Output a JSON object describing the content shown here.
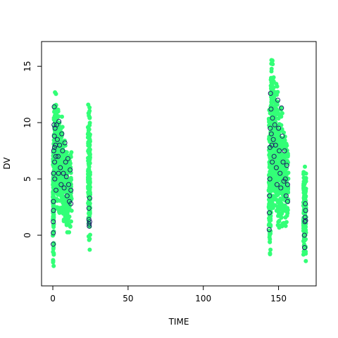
{
  "chart_data": {
    "type": "scatter",
    "title": "",
    "xlabel": "TIME",
    "ylabel": "DV",
    "xlim": [
      -7.5,
      175
    ],
    "ylim": [
      -4.5,
      17.2
    ],
    "xticks": [
      0,
      50,
      100,
      150
    ],
    "yticks": [
      0,
      5,
      10,
      15
    ],
    "grid": false,
    "legend": "none",
    "colors": {
      "simulated": "#33ff77",
      "observed": "#1a1a66"
    },
    "series": [
      {
        "marker": "filled-circle",
        "color": "#33ff77",
        "bands": [
          {
            "t0": 0,
            "t1": 0.7,
            "lo": -3.8,
            "hi": 9.5,
            "n": 110
          },
          {
            "t0": 0.7,
            "t1": 2.2,
            "lo": 3.5,
            "hi": 12.9,
            "n": 150
          },
          {
            "t0": 2.2,
            "t1": 4.0,
            "lo": 2.0,
            "hi": 12.0,
            "n": 120
          },
          {
            "t0": 4.0,
            "t1": 6.5,
            "lo": 1.5,
            "hi": 11.0,
            "n": 120
          },
          {
            "t0": 6.5,
            "t1": 9.0,
            "lo": 0.8,
            "hi": 9.0,
            "n": 110
          },
          {
            "t0": 9.0,
            "t1": 12.5,
            "lo": 0.0,
            "hi": 8.0,
            "n": 120
          },
          {
            "t0": 23.3,
            "t1": 24.8,
            "lo": -1.8,
            "hi": 11.9,
            "n": 160
          },
          {
            "t0": 143.5,
            "t1": 144.8,
            "lo": -2.5,
            "hi": 12.0,
            "n": 130
          },
          {
            "t0": 144.8,
            "t1": 147.0,
            "lo": 1.0,
            "hi": 16.5,
            "n": 160
          },
          {
            "t0": 147.0,
            "t1": 149.5,
            "lo": 1.5,
            "hi": 14.0,
            "n": 140
          },
          {
            "t0": 149.5,
            "t1": 152.5,
            "lo": -0.5,
            "hi": 12.5,
            "n": 140
          },
          {
            "t0": 152.5,
            "t1": 156.5,
            "lo": 0.0,
            "hi": 9.8,
            "n": 130
          },
          {
            "t0": 166.5,
            "t1": 168.3,
            "lo": -2.7,
            "hi": 6.6,
            "n": 140
          }
        ]
      },
      {
        "marker": "open-circle",
        "color": "#1a1a66",
        "points": [
          [
            0.2,
            -0.8
          ],
          [
            0.3,
            0.2
          ],
          [
            0.3,
            1.2
          ],
          [
            0.4,
            2.2
          ],
          [
            0.4,
            3.0
          ],
          [
            0.5,
            5.5
          ],
          [
            0.6,
            7.5
          ],
          [
            0.8,
            9.8
          ],
          [
            0.9,
            11.4
          ],
          [
            1.0,
            8.8
          ],
          [
            1.1,
            7.8
          ],
          [
            1.2,
            6.5
          ],
          [
            1.3,
            5.0
          ],
          [
            1.5,
            9.5
          ],
          [
            1.8,
            8.0
          ],
          [
            2.0,
            7.0
          ],
          [
            2.1,
            4.0
          ],
          [
            2.5,
            9.8
          ],
          [
            3.0,
            8.5
          ],
          [
            3.5,
            7.0
          ],
          [
            3.8,
            5.5
          ],
          [
            4.0,
            10.1
          ],
          [
            4.5,
            8.0
          ],
          [
            5.0,
            6.0
          ],
          [
            5.5,
            4.5
          ],
          [
            6.0,
            9.0
          ],
          [
            6.5,
            7.5
          ],
          [
            7.0,
            5.5
          ],
          [
            7.5,
            4.2
          ],
          [
            8.0,
            8.2
          ],
          [
            8.5,
            6.5
          ],
          [
            9.0,
            5.2
          ],
          [
            9.5,
            3.5
          ],
          [
            10.0,
            6.8
          ],
          [
            10.5,
            4.5
          ],
          [
            11.0,
            3.0
          ],
          [
            11.5,
            5.8
          ],
          [
            12.0,
            4.0
          ],
          [
            12.0,
            2.8
          ],
          [
            24.0,
            2.4
          ],
          [
            24.0,
            1.4
          ],
          [
            24.2,
            1.0
          ],
          [
            24.2,
            0.8
          ],
          [
            24.5,
            3.3
          ],
          [
            24.5,
            1.2
          ],
          [
            143.8,
            0.5
          ],
          [
            143.9,
            2.0
          ],
          [
            144.0,
            3.5
          ],
          [
            144.2,
            5.0
          ],
          [
            144.3,
            7.8
          ],
          [
            144.5,
            9.5
          ],
          [
            144.7,
            12.6
          ],
          [
            145.0,
            11.2
          ],
          [
            145.2,
            9.0
          ],
          [
            145.5,
            8.0
          ],
          [
            145.8,
            6.5
          ],
          [
            146.0,
            10.4
          ],
          [
            146.5,
            8.5
          ],
          [
            147.0,
            7.0
          ],
          [
            147.5,
            9.8
          ],
          [
            148.0,
            8.0
          ],
          [
            148.5,
            6.0
          ],
          [
            149.0,
            4.5
          ],
          [
            149.5,
            12.0
          ],
          [
            150.0,
            9.5
          ],
          [
            150.5,
            7.5
          ],
          [
            151.0,
            5.5
          ],
          [
            151.5,
            4.2
          ],
          [
            152.0,
            11.3
          ],
          [
            152.5,
            8.8
          ],
          [
            153.0,
            6.5
          ],
          [
            153.5,
            4.8
          ],
          [
            154.0,
            7.5
          ],
          [
            154.5,
            5.0
          ],
          [
            155.0,
            3.5
          ],
          [
            155.5,
            6.2
          ],
          [
            156.0,
            4.5
          ],
          [
            156.0,
            3.0
          ],
          [
            167.2,
            0.0
          ],
          [
            167.3,
            -1.1
          ],
          [
            167.5,
            1.2
          ],
          [
            167.6,
            1.6
          ],
          [
            167.8,
            2.8
          ],
          [
            168.0,
            1.3
          ],
          [
            168.0,
            2.2
          ]
        ]
      }
    ]
  }
}
